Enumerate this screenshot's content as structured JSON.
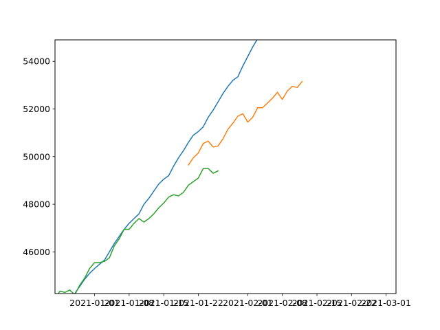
{
  "chart_data": {
    "type": "line",
    "title": "",
    "xlabel": "",
    "ylabel": "",
    "grid": false,
    "x_tick_labels": [
      "2021-01-01",
      "2021-01-08",
      "2021-01-15",
      "2021-01-22",
      "2021-02-01",
      "2021-02-08",
      "2021-02-15",
      "2021-02-22",
      "2021-03-01"
    ],
    "x_tick_dates": [
      "2021-01-01",
      "2021-01-08",
      "2021-01-15",
      "2021-01-22",
      "2021-02-01",
      "2021-02-08",
      "2021-02-15",
      "2021-02-22",
      "2021-03-01"
    ],
    "xlim": [
      "2020-12-24",
      "2021-03-03"
    ],
    "y_tick_labels": [
      "46000",
      "48000",
      "50000",
      "52000",
      "54000"
    ],
    "y_ticks": [
      46000,
      48000,
      50000,
      52000,
      54000
    ],
    "ylim": [
      44250,
      54900
    ],
    "series": [
      {
        "color": "#1f77b4",
        "points": [
          [
            "2020-12-24",
            43650
          ],
          [
            "2020-12-25",
            43850
          ],
          [
            "2020-12-26",
            44050
          ],
          [
            "2020-12-27",
            44150
          ],
          [
            "2020-12-28",
            44250
          ],
          [
            "2020-12-29",
            44550
          ],
          [
            "2020-12-30",
            44850
          ],
          [
            "2020-12-31",
            45100
          ],
          [
            "2021-01-01",
            45300
          ],
          [
            "2021-01-02",
            45480
          ],
          [
            "2021-01-03",
            45650
          ],
          [
            "2021-01-04",
            46000
          ],
          [
            "2021-01-05",
            46350
          ],
          [
            "2021-01-06",
            46650
          ],
          [
            "2021-01-07",
            46950
          ],
          [
            "2021-01-08",
            47200
          ],
          [
            "2021-01-09",
            47400
          ],
          [
            "2021-01-10",
            47600
          ],
          [
            "2021-01-11",
            48000
          ],
          [
            "2021-01-12",
            48250
          ],
          [
            "2021-01-13",
            48550
          ],
          [
            "2021-01-14",
            48850
          ],
          [
            "2021-01-15",
            49050
          ],
          [
            "2021-01-16",
            49200
          ],
          [
            "2021-01-17",
            49600
          ],
          [
            "2021-01-18",
            49950
          ],
          [
            "2021-01-19",
            50250
          ],
          [
            "2021-01-20",
            50600
          ],
          [
            "2021-01-21",
            50900
          ],
          [
            "2021-01-22",
            51050
          ],
          [
            "2021-01-23",
            51250
          ],
          [
            "2021-01-24",
            51650
          ],
          [
            "2021-01-25",
            51950
          ],
          [
            "2021-01-26",
            52300
          ],
          [
            "2021-01-27",
            52650
          ],
          [
            "2021-01-28",
            52950
          ],
          [
            "2021-01-29",
            53200
          ],
          [
            "2021-01-30",
            53350
          ],
          [
            "2021-01-31",
            53800
          ],
          [
            "2021-02-01",
            54200
          ],
          [
            "2021-02-02",
            54600
          ],
          [
            "2021-02-03",
            54950
          ]
        ]
      },
      {
        "color": "#ff7f0e",
        "points": [
          [
            "2021-01-20",
            49650
          ],
          [
            "2021-01-21",
            49950
          ],
          [
            "2021-01-22",
            50150
          ],
          [
            "2021-01-23",
            50550
          ],
          [
            "2021-01-24",
            50650
          ],
          [
            "2021-01-25",
            50400
          ],
          [
            "2021-01-26",
            50450
          ],
          [
            "2021-01-27",
            50750
          ],
          [
            "2021-01-28",
            51150
          ],
          [
            "2021-01-29",
            51400
          ],
          [
            "2021-01-30",
            51700
          ],
          [
            "2021-01-31",
            51800
          ],
          [
            "2021-02-01",
            51450
          ],
          [
            "2021-02-02",
            51650
          ],
          [
            "2021-02-03",
            52050
          ],
          [
            "2021-02-04",
            52050
          ],
          [
            "2021-02-05",
            52250
          ],
          [
            "2021-02-06",
            52450
          ],
          [
            "2021-02-07",
            52700
          ],
          [
            "2021-02-08",
            52400
          ],
          [
            "2021-02-09",
            52750
          ],
          [
            "2021-02-10",
            52950
          ],
          [
            "2021-02-11",
            52900
          ],
          [
            "2021-02-12",
            53150
          ]
        ]
      },
      {
        "color": "#2ca02c",
        "points": [
          [
            "2020-12-24",
            44050
          ],
          [
            "2020-12-25",
            44350
          ],
          [
            "2020-12-26",
            44300
          ],
          [
            "2020-12-27",
            44400
          ],
          [
            "2020-12-28",
            44200
          ],
          [
            "2020-12-29",
            44600
          ],
          [
            "2020-12-30",
            44900
          ],
          [
            "2020-12-31",
            45300
          ],
          [
            "2021-01-01",
            45550
          ],
          [
            "2021-01-02",
            45550
          ],
          [
            "2021-01-03",
            45600
          ],
          [
            "2021-01-04",
            45750
          ],
          [
            "2021-01-05",
            46250
          ],
          [
            "2021-01-06",
            46550
          ],
          [
            "2021-01-07",
            46950
          ],
          [
            "2021-01-08",
            46950
          ],
          [
            "2021-01-09",
            47200
          ],
          [
            "2021-01-10",
            47400
          ],
          [
            "2021-01-11",
            47250
          ],
          [
            "2021-01-12",
            47400
          ],
          [
            "2021-01-13",
            47600
          ],
          [
            "2021-01-14",
            47850
          ],
          [
            "2021-01-15",
            48050
          ],
          [
            "2021-01-16",
            48300
          ],
          [
            "2021-01-17",
            48400
          ],
          [
            "2021-01-18",
            48350
          ],
          [
            "2021-01-19",
            48500
          ],
          [
            "2021-01-20",
            48800
          ],
          [
            "2021-01-21",
            48950
          ],
          [
            "2021-01-22",
            49100
          ],
          [
            "2021-01-23",
            49500
          ],
          [
            "2021-01-24",
            49500
          ],
          [
            "2021-01-25",
            49300
          ],
          [
            "2021-01-26",
            49400
          ]
        ]
      }
    ]
  }
}
